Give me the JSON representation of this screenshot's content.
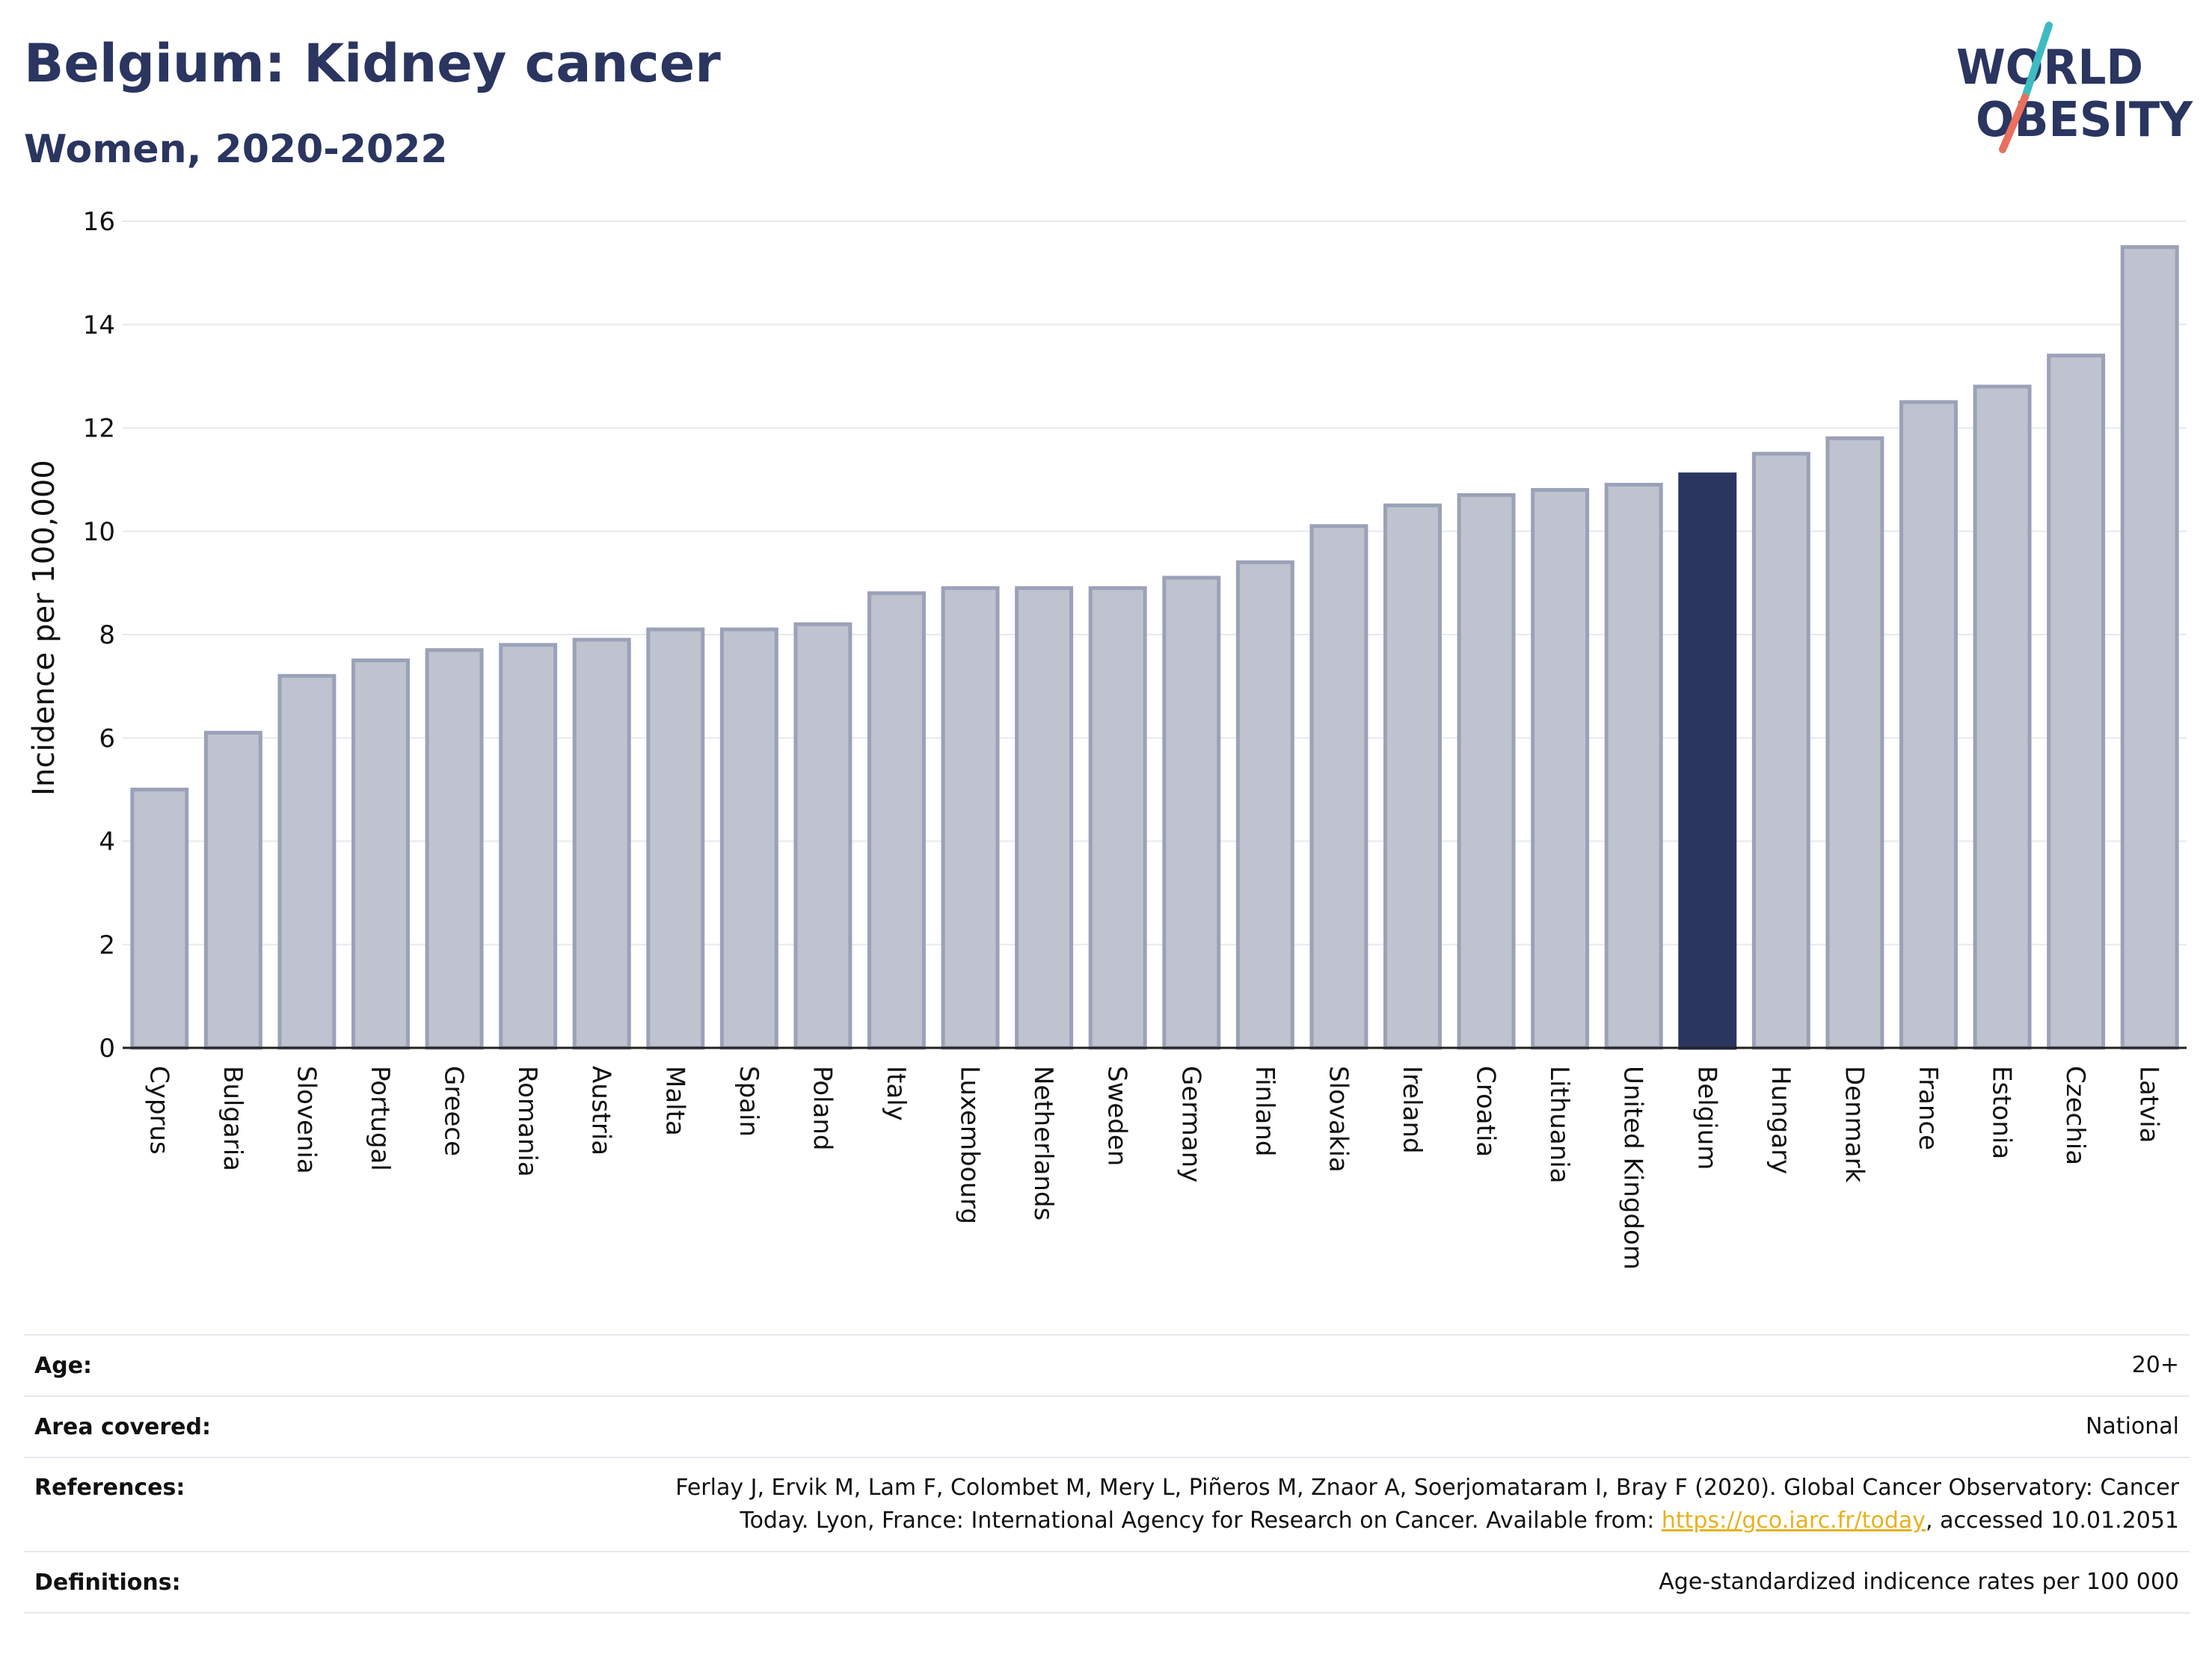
{
  "header": {
    "title": "Belgium: Kidney cancer",
    "subtitle": "Women, 2020-2022"
  },
  "logo": {
    "line1": "WORLD",
    "line2": "OBESITY",
    "slash_top_color": "#3cbcc2",
    "slash_bottom_color": "#e8705f"
  },
  "colors": {
    "bar_default": "#bfc3cf",
    "bar_default_border": "#9ba1b8",
    "bar_highlight": "#2a3560",
    "text_primary": "#2a3560",
    "link": "#e6b21e"
  },
  "chart_data": {
    "type": "bar",
    "title": "Belgium: Kidney cancer",
    "subtitle": "Women, 2020-2022",
    "xlabel": "",
    "ylabel": "Incidence per 100,000",
    "ylim": [
      0,
      16
    ],
    "yticks": [
      0,
      2,
      4,
      6,
      8,
      10,
      12,
      14,
      16
    ],
    "grid": true,
    "highlight": "Belgium",
    "categories": [
      "Cyprus",
      "Bulgaria",
      "Slovenia",
      "Portugal",
      "Greece",
      "Romania",
      "Austria",
      "Malta",
      "Spain",
      "Poland",
      "Italy",
      "Luxembourg",
      "Netherlands",
      "Sweden",
      "Germany",
      "Finland",
      "Slovakia",
      "Ireland",
      "Croatia",
      "Lithuania",
      "United Kingdom",
      "Belgium",
      "Hungary",
      "Denmark",
      "France",
      "Estonia",
      "Czechia",
      "Latvia"
    ],
    "values": [
      5.0,
      6.1,
      7.2,
      7.5,
      7.7,
      7.8,
      7.9,
      8.1,
      8.1,
      8.2,
      8.8,
      8.9,
      8.9,
      8.9,
      9.1,
      9.4,
      10.1,
      10.5,
      10.7,
      10.8,
      10.9,
      11.1,
      11.5,
      11.8,
      12.5,
      12.8,
      13.4,
      15.5
    ]
  },
  "info": {
    "age_label": "Age:",
    "age_value": "20+",
    "area_label": "Area covered:",
    "area_value": "National",
    "references_label": "References:",
    "references_line1": "Ferlay J, Ervik M, Lam F, Colombet M, Mery L, Piñeros M, Znaor A, Soerjomataram I, Bray F (2020). Global Cancer Observatory: Cancer",
    "references_line2_pre": "Today. Lyon, France: International Agency for Research on Cancer. Available from: ",
    "references_link": "https://gco.iarc.fr/today",
    "references_line2_post": ", accessed 10.01.2051",
    "definitions_label": "Definitions:",
    "definitions_value": "Age-standardized indicence rates per 100 000"
  }
}
